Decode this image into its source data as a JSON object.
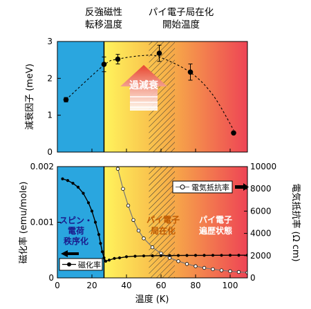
{
  "annotations": {
    "top_left": [
      "反強磁性",
      "転移温度"
    ],
    "top_right": [
      "パイ電子局在化",
      "開始温度"
    ],
    "damping_arrow": "過減衰",
    "region_spin": [
      "スピン・",
      "電荷",
      "秩序化"
    ],
    "region_localized": [
      "パイ電子",
      "局在化"
    ],
    "region_itinerant": [
      "パイ電子",
      "遍歴状態"
    ]
  },
  "colors": {
    "blue_region": "#2aa6df",
    "gradient_start": "#fff45c",
    "gradient_mid": "#f7b048",
    "gradient_end": "#ee4455",
    "damping_arrow": "#e8462f"
  },
  "chart_data": [
    {
      "type": "scatter",
      "xlim": [
        0,
        110
      ],
      "ylim": [
        0,
        3
      ],
      "ylabel": "減衰因子 (meV)",
      "xticks": [],
      "yticks": [
        "0",
        "1",
        "2",
        "3"
      ],
      "series": [
        {
          "x": [
            5,
            27,
            35,
            59,
            77,
            102
          ],
          "y": [
            1.42,
            2.38,
            2.52,
            2.68,
            2.17,
            0.52
          ],
          "yerr": [
            0.06,
            0.2,
            0.13,
            0.22,
            0.22,
            0.04
          ]
        }
      ],
      "fit_curve": {
        "style": "dashed",
        "x": [
          5,
          27,
          35,
          50,
          59,
          77,
          90,
          102
        ],
        "y": [
          1.42,
          2.36,
          2.52,
          2.62,
          2.58,
          2.16,
          1.55,
          0.6
        ]
      },
      "vertical_line_x": 27,
      "hatched_range": [
        53,
        68
      ],
      "region_boundary_x": 27
    },
    {
      "type": "line",
      "xlim": [
        0,
        110
      ],
      "xticks": [
        "0",
        "20",
        "40",
        "60",
        "80",
        "100"
      ],
      "xlabel": "温度 (K)",
      "ylabel": "磁化率 (emu/mole)",
      "ylim": [
        0,
        0.002
      ],
      "yticks": [
        "0",
        "0.001",
        "0.002"
      ],
      "y2label": "電気抵抗率 (Ω cm)",
      "y2lim": [
        0,
        10000
      ],
      "y2ticks": [
        "0",
        "2000",
        "4000",
        "6000",
        "8000",
        "10000"
      ],
      "series": [
        {
          "name": "磁化率",
          "axis": "left",
          "marker": "filled-circle",
          "x": [
            3,
            6,
            9,
            12,
            15,
            18,
            20,
            22,
            24,
            25,
            26,
            27,
            28,
            30,
            33,
            36,
            40,
            45,
            50,
            55,
            60,
            65,
            70,
            75,
            80,
            85,
            90,
            95,
            100,
            105,
            110
          ],
          "y": [
            0.00178,
            0.00175,
            0.0017,
            0.00163,
            0.00152,
            0.00135,
            0.0012,
            0.001,
            0.00078,
            0.00062,
            0.00047,
            0.00036,
            0.0003,
            0.00032,
            0.00035,
            0.00036,
            0.00038,
            0.00039,
            0.000395,
            0.000398,
            0.0004,
            0.000402,
            0.000403,
            0.000404,
            0.000405,
            0.000405,
            0.000406,
            0.000406,
            0.000407,
            0.000407,
            0.000408
          ]
        },
        {
          "name": "電気抵抗率",
          "axis": "right",
          "marker": "open-circle",
          "x": [
            35,
            38,
            41,
            44,
            47,
            50,
            55,
            60,
            65,
            70,
            75,
            80,
            85,
            90,
            95,
            100,
            105,
            110
          ],
          "y": [
            9800,
            8000,
            6500,
            5200,
            4250,
            3550,
            2750,
            2200,
            1800,
            1500,
            1250,
            1050,
            900,
            780,
            680,
            600,
            530,
            480
          ]
        }
      ],
      "vertical_line_x": 27,
      "hatched_range": [
        53,
        68
      ]
    }
  ]
}
